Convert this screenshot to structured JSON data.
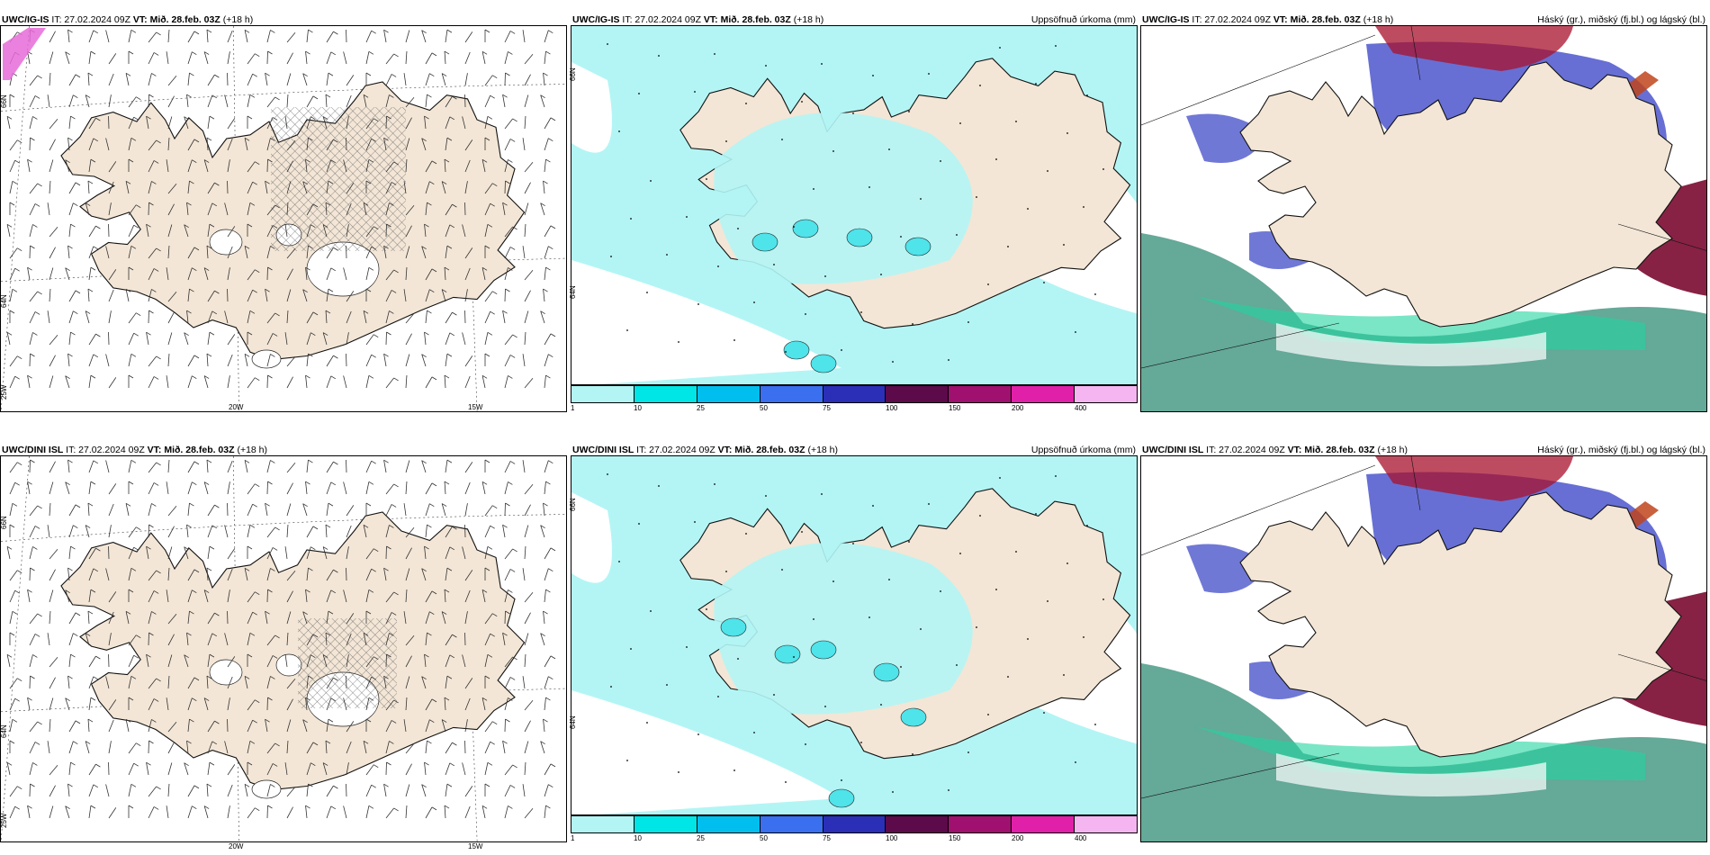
{
  "panels": {
    "top_left": {
      "model": "UWC/IG-IS",
      "init": "IT: 27.02.2024 09Z",
      "vt_label": "VT:",
      "valid": "Mið. 28.feb. 03Z",
      "lead": "(+18 h)",
      "right_title": ""
    },
    "top_mid": {
      "model": "UWC/IG-IS",
      "init": "IT: 27.02.2024 09Z",
      "vt_label": "VT:",
      "valid": "Mið. 28.feb. 03Z",
      "lead": "(+18 h)",
      "right_title": "Uppsöfnuð úrkoma (mm)"
    },
    "top_right": {
      "model": "UWC/IG-IS",
      "init": "IT: 27.02.2024 09Z",
      "vt_label": "VT:",
      "valid": "Mið. 28.feb. 03Z",
      "lead": "(+18 h)",
      "right_title": "Háský (gr.), miðský (fj.bl.) og lágský (bl.)"
    },
    "bot_left": {
      "model": "UWC/DINI ISL",
      "init": "IT: 27.02.2024 09Z",
      "vt_label": "VT:",
      "valid": "Mið. 28.feb. 03Z",
      "lead": "(+18 h)",
      "right_title": ""
    },
    "bot_mid": {
      "model": "UWC/DINI ISL",
      "init": "IT: 27.02.2024 09Z",
      "vt_label": "VT:",
      "valid": "Mið. 28.feb. 03Z",
      "lead": "(+18 h)",
      "right_title": "Uppsöfnuð úrkoma (mm)"
    },
    "bot_right": {
      "model": "UWC/DINI ISL",
      "init": "IT: 27.02.2024 09Z",
      "vt_label": "VT:",
      "valid": "Mið. 28.feb. 03Z",
      "lead": "(+18 h)",
      "right_title": "Háský (gr.), miðský (fj.bl.) og lágský (bl.)"
    }
  },
  "axes": {
    "lat_66": "66N",
    "lat_64": "64N",
    "lon_25": "25W",
    "lon_20": "20W",
    "lon_15": "15W"
  },
  "colorbar": {
    "ticks": [
      "1",
      "10",
      "25",
      "50",
      "75",
      "100",
      "150",
      "200",
      "400"
    ],
    "colors": [
      "#b3f5f5",
      "#00e5e5",
      "#00bfef",
      "#3a6ff0",
      "#2b2fb8",
      "#5c0a4a",
      "#a0106e",
      "#e020a8",
      "#f5b5f0"
    ]
  },
  "colors": {
    "land": "#f3e6d6",
    "precip_light": "#b3f5f5",
    "precip_mid": "#4fe3ea",
    "high_cloud": "#4a9a86",
    "mid_cloud": "#4c56cc",
    "low_cloud": "#a8102c"
  }
}
